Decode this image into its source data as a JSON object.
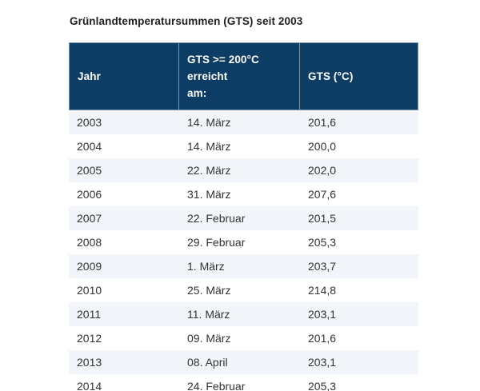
{
  "title": "Grünlandtemperatursummen (GTS) seit 2003",
  "chart_data": {
    "type": "table",
    "title": "Grünlandtemperatursummen (GTS) seit 2003",
    "columns": [
      "Jahr",
      "GTS >= 200°C erreicht\nam:",
      "GTS (°C)"
    ],
    "rows": [
      [
        "2003",
        "14. März",
        "201,6"
      ],
      [
        "2004",
        "14. März",
        "200,0"
      ],
      [
        "2005",
        "22. März",
        "202,0"
      ],
      [
        "2006",
        "31. März",
        "207,6"
      ],
      [
        "2007",
        "22. Februar",
        "201,5"
      ],
      [
        "2008",
        "29. Februar",
        "205,3"
      ],
      [
        "2009",
        "1. März",
        "203,7"
      ],
      [
        "2010",
        "25. März",
        "214,8"
      ],
      [
        "2011",
        "11. März",
        "203,1"
      ],
      [
        "2012",
        "09. März",
        "201,6"
      ],
      [
        "2013",
        "08. April",
        "203,1"
      ],
      [
        "2014",
        "24. Februar",
        "205,3"
      ]
    ]
  },
  "colors": {
    "header_bg": "#0d3d64",
    "header_text": "#ffffff",
    "row_alt_bg": "#f2f5fa",
    "row_bg": "#ffffff",
    "body_text": "#333333",
    "title_text": "#1f1f1f"
  }
}
